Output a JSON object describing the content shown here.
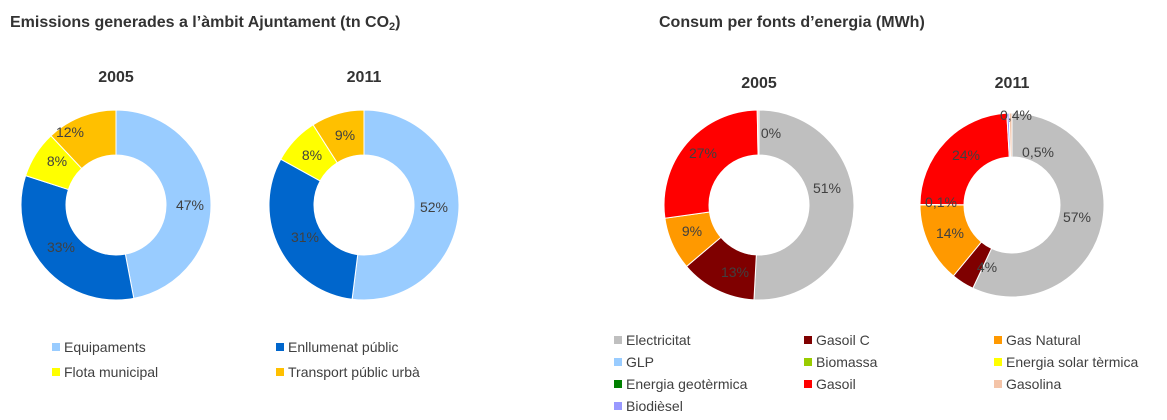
{
  "left_panel": {
    "title_text": "Emissions generades a l’àmbit Ajuntament (tn CO",
    "title_subscript": "2",
    "title_close": ")"
  },
  "right_panel": {
    "title": "Consum per fonts d’energia (MWh)"
  },
  "chart_data": [
    {
      "type": "pie",
      "title": "2005",
      "categories": [
        "Equipaments",
        "Enllumenat públic",
        "Flota municipal",
        "Transport públic urbà"
      ],
      "values": [
        47,
        33,
        8,
        12
      ],
      "labels": [
        "47%",
        "33%",
        "8%",
        "12%"
      ],
      "colors": [
        "#99ccff",
        "#0066cc",
        "#ffff00",
        "#ffc000"
      ]
    },
    {
      "type": "pie",
      "title": "2011",
      "categories": [
        "Equipaments",
        "Enllumenat públic",
        "Flota municipal",
        "Transport públic urbà"
      ],
      "values": [
        52,
        31,
        8,
        9
      ],
      "labels": [
        "52%",
        "31%",
        "8%",
        "9%"
      ],
      "colors": [
        "#99ccff",
        "#0066cc",
        "#ffff00",
        "#ffc000"
      ]
    },
    {
      "type": "pie",
      "title": "2005",
      "categories": [
        "Electricitat",
        "Gasoil C",
        "Gas Natural",
        "Gasoil",
        "Gasolina"
      ],
      "values": [
        51,
        13,
        9,
        27,
        0.3
      ],
      "labels": [
        "51%",
        "13%",
        "9%",
        "27%",
        "0%"
      ],
      "colors": [
        "#bfbfbf",
        "#7f0000",
        "#ff9900",
        "#ff0000",
        "#f4c4a8"
      ]
    },
    {
      "type": "pie",
      "title": "2011",
      "categories": [
        "Electricitat",
        "Gasoil C",
        "Gas Natural",
        "GLP",
        "Gasoil",
        "Biodièsel",
        "Gasolina"
      ],
      "values": [
        57,
        4,
        14,
        0.1,
        24,
        0.4,
        0.5
      ],
      "labels": [
        "57%",
        "4%",
        "14%",
        "0,1%",
        "24%",
        "0,4%",
        "0,5%"
      ],
      "colors": [
        "#bfbfbf",
        "#7f0000",
        "#ff9900",
        "#99ccff",
        "#ff0000",
        "#9999ff",
        "#f4c4a8"
      ]
    }
  ],
  "legend_left": [
    {
      "label": "Equipaments",
      "color": "#99ccff"
    },
    {
      "label": "Enllumenat públic",
      "color": "#0066cc"
    },
    {
      "label": "Flota municipal",
      "color": "#ffff00"
    },
    {
      "label": "Transport públic urbà",
      "color": "#ffc000"
    }
  ],
  "legend_right": [
    {
      "label": "Electricitat",
      "color": "#bfbfbf"
    },
    {
      "label": "Gasoil C",
      "color": "#7f0000"
    },
    {
      "label": "Gas Natural",
      "color": "#ff9900"
    },
    {
      "label": "GLP",
      "color": "#99ccff"
    },
    {
      "label": "Biomassa",
      "color": "#99cc00"
    },
    {
      "label": "Energia solar tèrmica",
      "color": "#ffff00"
    },
    {
      "label": "Energia geotèrmica",
      "color": "#008000"
    },
    {
      "label": "Gasoil",
      "color": "#ff0000"
    },
    {
      "label": "Gasolina",
      "color": "#f4c4a8"
    },
    {
      "label": "Biodièsel",
      "color": "#9999ff"
    }
  ]
}
